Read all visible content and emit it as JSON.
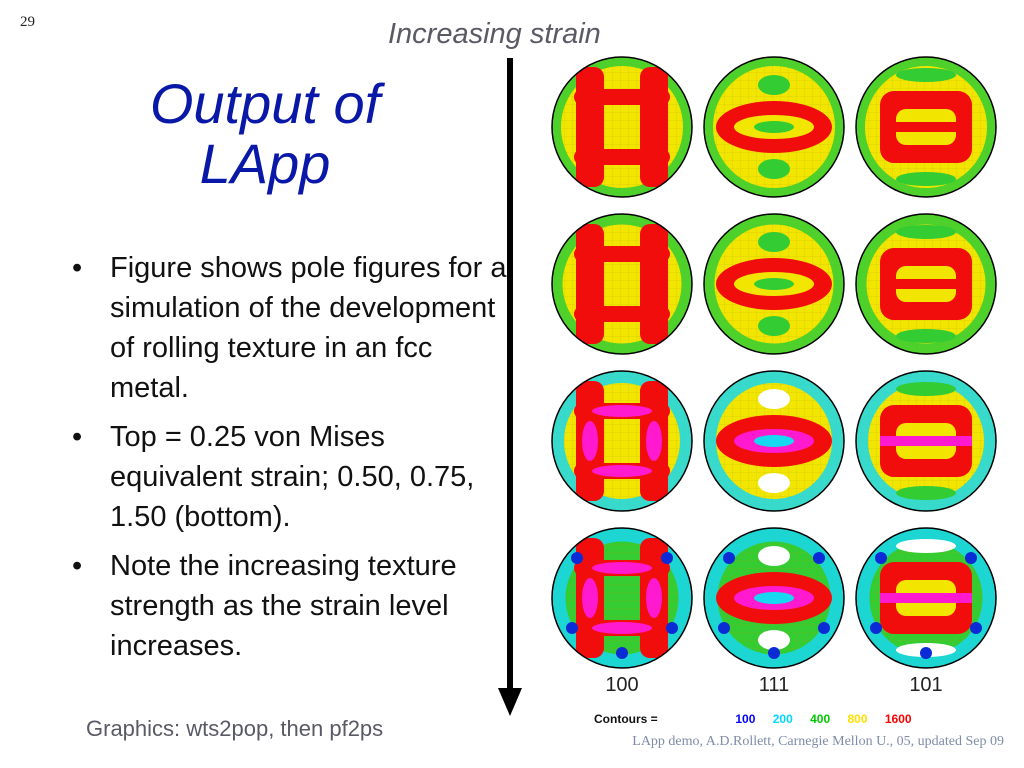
{
  "slide": {
    "number": "29",
    "top_label": "Increasing strain",
    "title_line1": "Output of",
    "title_line2": "LApp",
    "bullets": [
      "Figure shows pole figures for a simulation of the development of rolling texture in an fcc metal.",
      "Top = 0.25 von Mises equivalent strain; 0.50, 0.75, 1.50 (bottom).",
      "Note the increasing texture strength as the strain level increases."
    ],
    "credit": "Graphics: wts2pop, then pf2ps",
    "footer": "LApp demo, A.D.Rollett, Carnegie Mellon U., 05, updated Sep 09"
  },
  "figure": {
    "column_labels": [
      "100",
      "111",
      "101"
    ],
    "contours_title": "Contours =",
    "contour_levels": [
      {
        "value": "100",
        "color": "#0000ff"
      },
      {
        "value": "200",
        "color": "#00d8ff"
      },
      {
        "value": "400",
        "color": "#00c800"
      },
      {
        "value": "800",
        "color": "#ffe000"
      },
      {
        "value": "1600",
        "color": "#ff0000"
      }
    ],
    "colors": {
      "low": "#ffffff",
      "c100": "#0a2bd6",
      "c200": "#18d7f0",
      "c400": "#33cc33",
      "c800": "#f2e600",
      "c1600": "#f20d0d",
      "high": "#ff1ad0"
    }
  }
}
